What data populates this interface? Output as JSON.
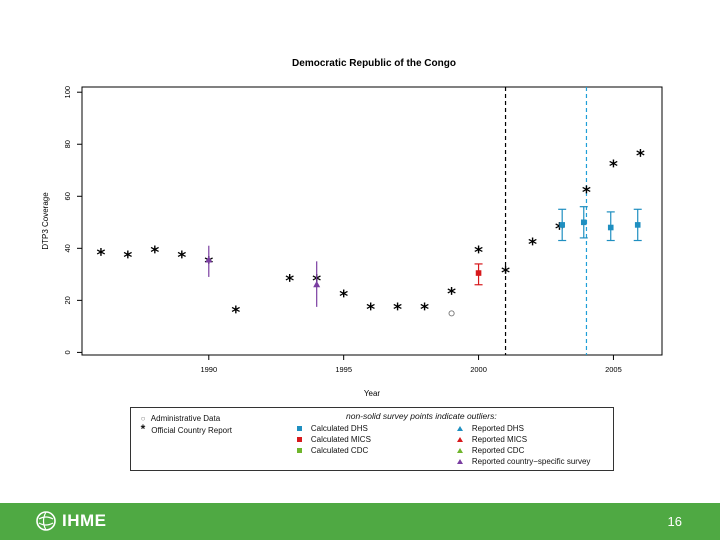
{
  "chart_data": {
    "type": "scatter",
    "title": "Democratic Republic of the Congo",
    "xlabel": "Year",
    "ylabel": "DTP3 Coverage",
    "xlim": [
      1985.3,
      2006.8
    ],
    "ylim": [
      -1,
      102
    ],
    "x_ticks": [
      1990,
      1995,
      2000,
      2005
    ],
    "y_ticks": [
      0,
      20,
      40,
      60,
      80,
      100
    ],
    "vlines": [
      {
        "x": 2001,
        "color": "#000000",
        "style": "dashed"
      },
      {
        "x": 2004,
        "color": "#1f9fd8",
        "style": "dashed"
      }
    ],
    "series": [
      {
        "name": "Administrative Data",
        "marker": "circle",
        "color": "#777777",
        "points": [
          [
            1999,
            15
          ]
        ]
      },
      {
        "name": "Official Country Report",
        "marker": "star",
        "color": "#000000",
        "points": [
          [
            1986,
            38
          ],
          [
            1987,
            37
          ],
          [
            1988,
            39
          ],
          [
            1989,
            37
          ],
          [
            1990,
            35
          ],
          [
            1991,
            16
          ],
          [
            1993,
            28
          ],
          [
            1994,
            28
          ],
          [
            1995,
            22
          ],
          [
            1996,
            17
          ],
          [
            1997,
            17
          ],
          [
            1998,
            17
          ],
          [
            1999,
            23
          ],
          [
            2000,
            39
          ],
          [
            2001,
            31
          ],
          [
            2002,
            42
          ],
          [
            2003,
            48
          ],
          [
            2004,
            62
          ],
          [
            2005,
            72
          ],
          [
            2006,
            76
          ]
        ]
      },
      {
        "name": "Calculated DHS",
        "marker": "square",
        "color": "#1f8fc0",
        "points": [
          [
            2003.1,
            49,
            43,
            55
          ],
          [
            2003.9,
            50,
            44,
            56
          ],
          [
            2004.9,
            48,
            43,
            54
          ],
          [
            2005.9,
            49,
            43,
            55
          ]
        ]
      },
      {
        "name": "Calculated MICS",
        "marker": "square",
        "color": "#d7191c",
        "points": [
          [
            2000,
            30.5,
            26,
            34
          ]
        ]
      },
      {
        "name": "Reported country-specific survey",
        "marker": "triangle",
        "color": "#7a3ea1",
        "points": [
          [
            1990,
            35.5,
            29,
            41
          ],
          [
            1994,
            26,
            17.5,
            35
          ]
        ]
      }
    ],
    "legend": {
      "title": "non-solid survey points indicate outliers:",
      "col1": [
        {
          "symbol": "○",
          "label": "Administrative Data",
          "color": "#777777"
        },
        {
          "symbol": "*",
          "label": "Official Country Report",
          "color": "#000000"
        }
      ],
      "col2": [
        {
          "label": "Calculated DHS",
          "color": "#1f8fc0"
        },
        {
          "label": "Calculated MICS",
          "color": "#d7191c"
        },
        {
          "label": "Calculated CDC",
          "color": "#6fb52c"
        }
      ],
      "col3": [
        {
          "label": "Reported DHS",
          "color": "#1f8fc0"
        },
        {
          "label": "Reported MICS",
          "color": "#d7191c"
        },
        {
          "label": "Reported CDC",
          "color": "#6fb52c"
        },
        {
          "label": "Reported country−specific survey",
          "color": "#7a3ea1"
        }
      ]
    }
  },
  "footer": {
    "logo_text": "IHME",
    "page_number": "16",
    "bar_color": "#4fa943"
  }
}
